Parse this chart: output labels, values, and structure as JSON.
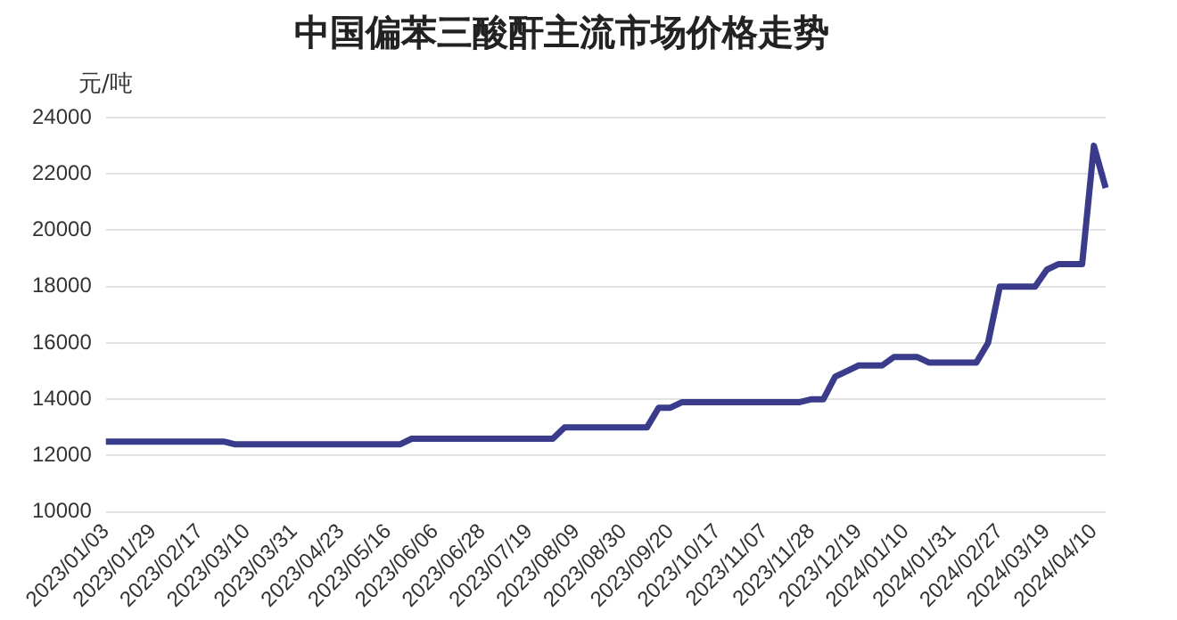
{
  "chart_data": {
    "type": "line",
    "title": "中国偏苯三酸酐主流市场价格走势",
    "ylabel": "元/吨",
    "categories": [
      "2023/01/03",
      null,
      null,
      null,
      "2023/01/29",
      null,
      null,
      null,
      "2023/02/17",
      null,
      null,
      null,
      "2023/03/10",
      null,
      null,
      null,
      "2023/03/31",
      null,
      null,
      null,
      "2023/04/23",
      null,
      null,
      null,
      "2023/05/16",
      null,
      null,
      null,
      "2023/06/06",
      null,
      null,
      null,
      "2023/06/28",
      null,
      null,
      null,
      "2023/07/19",
      null,
      null,
      null,
      "2023/08/09",
      null,
      null,
      null,
      "2023/08/30",
      null,
      null,
      null,
      "2023/09/20",
      null,
      null,
      null,
      "2023/10/17",
      null,
      null,
      null,
      "2023/11/07",
      null,
      null,
      null,
      "2023/11/28",
      null,
      null,
      null,
      "2023/12/19",
      null,
      null,
      null,
      "2024/01/10",
      null,
      null,
      null,
      "2024/01/31",
      null,
      null,
      null,
      "2024/02/27",
      null,
      null,
      null,
      "2024/03/19",
      null,
      null,
      null,
      "2024/04/10",
      null
    ],
    "series": [
      {
        "color": "#3b3b8c",
        "values": [
          12500,
          12500,
          12500,
          12500,
          12500,
          12500,
          12500,
          12500,
          12500,
          12500,
          12500,
          12400,
          12400,
          12400,
          12400,
          12400,
          12400,
          12400,
          12400,
          12400,
          12400,
          12400,
          12400,
          12400,
          12400,
          12400,
          12600,
          12600,
          12600,
          12600,
          12600,
          12600,
          12600,
          12600,
          12600,
          12600,
          12600,
          12600,
          12600,
          13000,
          13000,
          13000,
          13000,
          13000,
          13000,
          13000,
          13000,
          13700,
          13700,
          13900,
          13900,
          13900,
          13900,
          13900,
          13900,
          13900,
          13900,
          13900,
          13900,
          13900,
          14000,
          14000,
          14800,
          15000,
          15200,
          15200,
          15200,
          15500,
          15500,
          15500,
          15300,
          15300,
          15300,
          15300,
          15300,
          16000,
          18000,
          18000,
          18000,
          18000,
          18600,
          18800,
          18800,
          18800,
          23000,
          21500
        ]
      }
    ],
    "ylim": [
      10000,
      24000
    ],
    "yticks": [
      10000,
      12000,
      14000,
      16000,
      18000,
      20000,
      22000,
      24000
    ],
    "grid": "y",
    "legend": false,
    "marker": "none",
    "line_style": "solid"
  }
}
